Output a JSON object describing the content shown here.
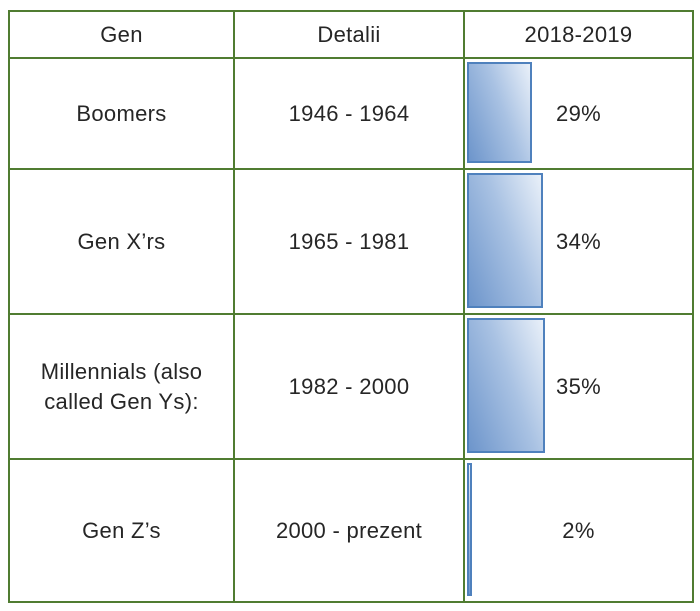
{
  "table": {
    "headers": {
      "gen": "Gen",
      "detail": "Detalii",
      "period": "2018-2019"
    },
    "rows": [
      {
        "gen": "Boomers",
        "detail": "1946 - 1964",
        "value": 29,
        "pct": "29%"
      },
      {
        "gen": "Gen X’rs",
        "detail": "1965 - 1981",
        "value": 34,
        "pct": "34%"
      },
      {
        "gen": "Millennials (also called Gen Ys):",
        "detail": "1982 - 2000",
        "value": 35,
        "pct": "35%"
      },
      {
        "gen": "Gen Z’s",
        "detail": "2000 - prezent",
        "value": 2,
        "pct": "2%"
      }
    ]
  },
  "chart_data": {
    "type": "bar",
    "orientation": "horizontal",
    "title": "",
    "series_name": "2018-2019",
    "categories": [
      "Boomers",
      "Gen X’rs",
      "Millennials (also called Gen Ys):",
      "Gen Z’s"
    ],
    "values": [
      29,
      34,
      35,
      2
    ],
    "labels": [
      "29%",
      "34%",
      "35%",
      "2%"
    ],
    "xlim": [
      0,
      100
    ],
    "grid": false,
    "legend": false
  },
  "colors": {
    "table_border": "#507c31",
    "bar_border": "#4f81bd",
    "bar_gradient_dark": "#6d95cb",
    "bar_gradient_light": "#e9f0f9",
    "text": "#262626",
    "background": "#ffffff"
  }
}
